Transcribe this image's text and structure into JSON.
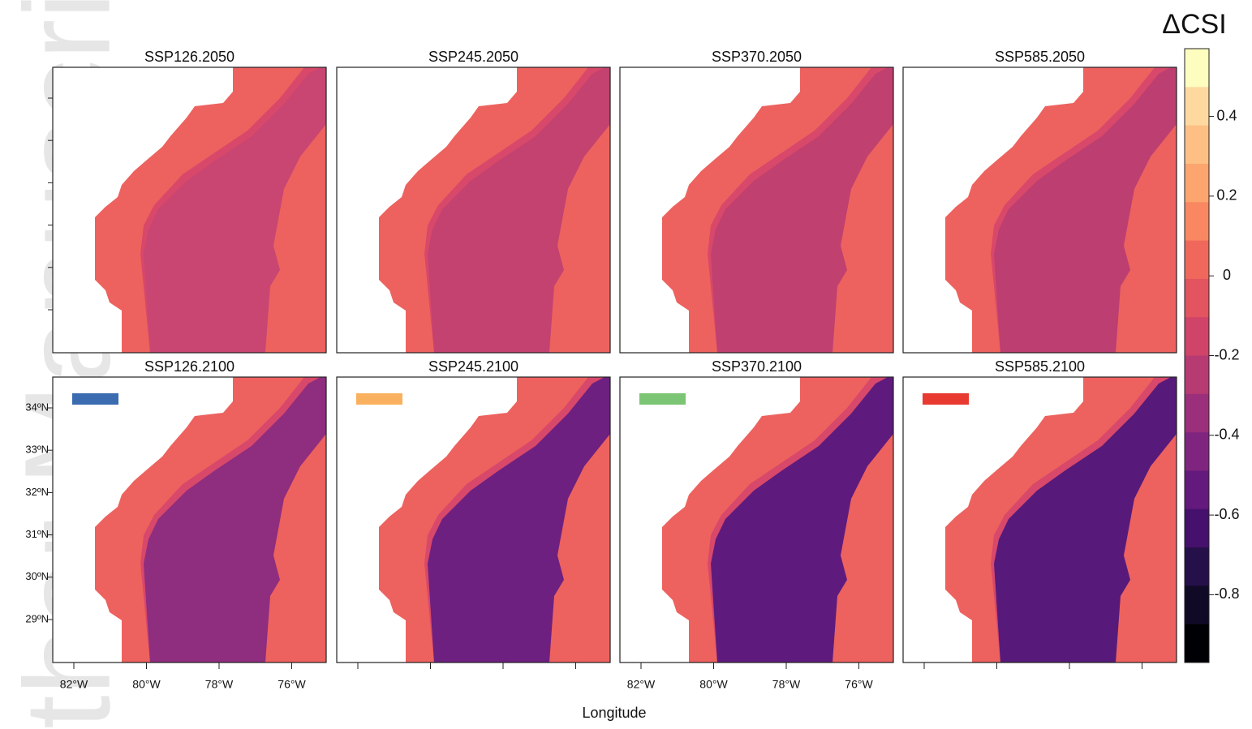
{
  "watermark": "thor Manuscri",
  "colorbar": {
    "title": "ΔCSI",
    "range": [
      -0.97,
      0.57
    ],
    "ticks": [
      0.4,
      0.2,
      0,
      -0.2,
      -0.4,
      -0.6,
      -0.8
    ],
    "colors": [
      "#fcfdbf",
      "#fdd9a0",
      "#fdbf84",
      "#fca56f",
      "#f98862",
      "#f0685c",
      "#e2545f",
      "#cf4468",
      "#b73a73",
      "#9c2f7b",
      "#80257f",
      "#631a7c",
      "#46116c",
      "#26104a",
      "#100a26",
      "#000004"
    ]
  },
  "panels": [
    {
      "title": "SSP126.2050",
      "shelf_color": "#c84671"
    },
    {
      "title": "SSP245.2050",
      "shelf_color": "#c3426f"
    },
    {
      "title": "SSP370.2050",
      "shelf_color": "#c0406f"
    },
    {
      "title": "SSP585.2050",
      "shelf_color": "#bd3e70"
    },
    {
      "title": "SSP126.2100",
      "shelf_color": "#8f2d7e",
      "swatch_color": "#3b6cb0"
    },
    {
      "title": "SSP245.2100",
      "shelf_color": "#6d2080",
      "swatch_color": "#f9b15f"
    },
    {
      "title": "SSP370.2100",
      "shelf_color": "#5e1b7d",
      "swatch_color": "#7cc574"
    },
    {
      "title": "SSP585.2100",
      "shelf_color": "#571a7a",
      "swatch_color": "#e83a31"
    }
  ],
  "y_axis": {
    "labels": [
      "34ºN",
      "33ºN",
      "32ºN",
      "31ºN",
      "30ºN",
      "29ºN"
    ]
  },
  "x_axis": {
    "title": "Longitude",
    "labels": [
      "82°W",
      "80°W",
      "78°W",
      "76°W"
    ]
  }
}
